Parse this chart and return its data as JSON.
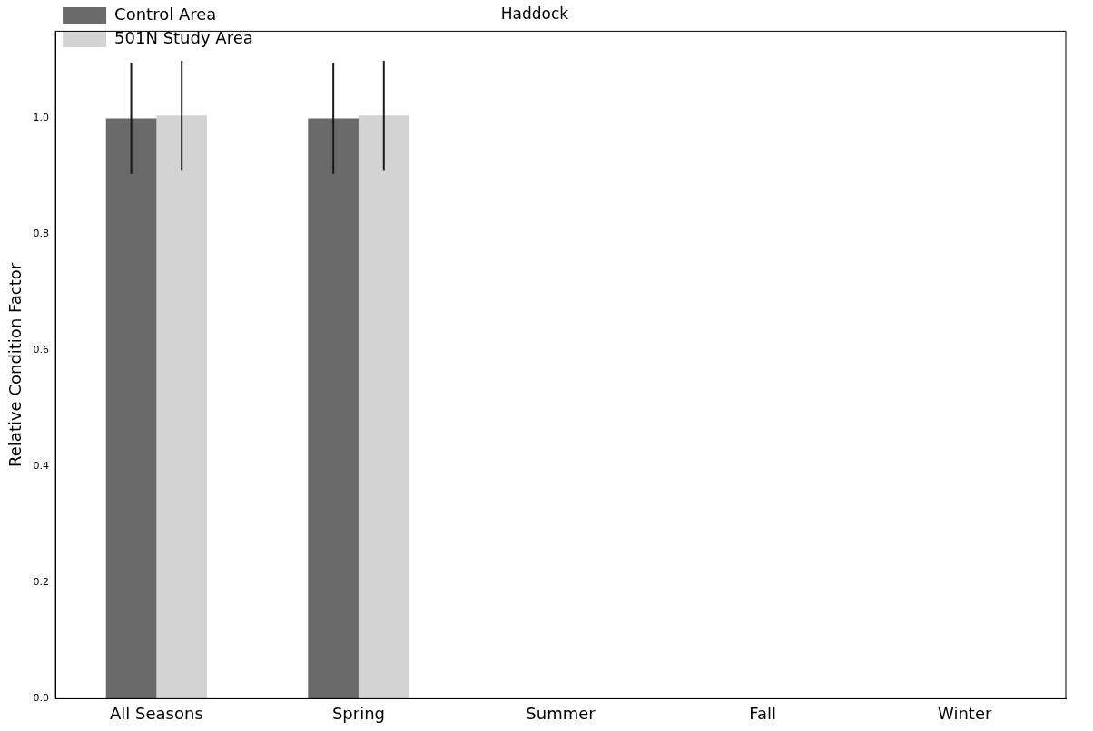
{
  "chart_data": {
    "type": "bar",
    "title": "Haddock",
    "ylabel": "Relative Condition Factor",
    "categories": [
      "All Seasons",
      "Spring",
      "Summer",
      "Fall",
      "Winter"
    ],
    "series": [
      {
        "name": "Control Area",
        "color": "#696969",
        "values": [
          1.0,
          1.0,
          null,
          null,
          null
        ],
        "errors": [
          0.096,
          0.096,
          null,
          null,
          null
        ]
      },
      {
        "name": "501N Study Area",
        "color": "#d3d3d3",
        "values": [
          1.005,
          1.005,
          null,
          null,
          null
        ],
        "errors": [
          0.094,
          0.094,
          null,
          null,
          null
        ]
      }
    ],
    "ylim": [
      0,
      1.15
    ],
    "yticks": [
      {
        "value": 0,
        "label": "0.0"
      },
      {
        "value": 0.2,
        "label": "0.2"
      },
      {
        "value": 0.4,
        "label": "0.4"
      },
      {
        "value": 0.6,
        "label": "0.6"
      },
      {
        "value": 0.8,
        "label": "0.8"
      },
      {
        "value": 1,
        "label": "1.0"
      }
    ],
    "grid": false,
    "legend": "top left"
  }
}
